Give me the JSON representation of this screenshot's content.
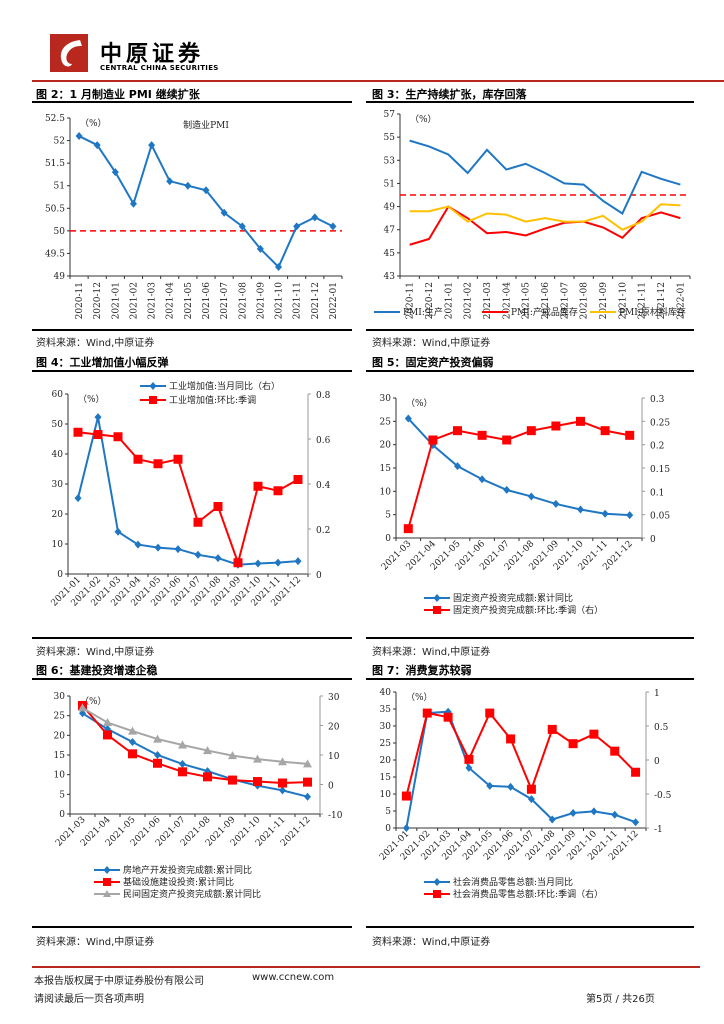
{
  "header": {
    "logo_cn": "中原证券",
    "logo_en": "CENTRAL CHINA SECURITIES"
  },
  "source_label": "资料来源：Wind,中原证券",
  "footer": {
    "copyright": "本报告版权属于中原证券股份有限公司",
    "website": "www.ccnew.com",
    "disclaimer": "请阅读最后一页各项声明",
    "page": "第5页 / 共26页"
  },
  "colors": {
    "brand_red": "#b8281f",
    "blue": "#1f77c4",
    "red": "#ff0000",
    "orange": "#ffc000",
    "gray": "#a6a6a6"
  },
  "chart_data": [
    {
      "id": "fig2",
      "figure_title": "图 2：1 月制造业 PMI 继续扩张",
      "type": "line",
      "title": "制造业PMI",
      "unit_label": "（%）",
      "categories": [
        "2020-11",
        "2020-12",
        "2021-01",
        "2021-02",
        "2021-03",
        "2021-04",
        "2021-05",
        "2021-06",
        "2021-07",
        "2021-08",
        "2021-09",
        "2021-10",
        "2021-11",
        "2021-12",
        "2022-01"
      ],
      "series": [
        {
          "name": "制造业PMI",
          "values": [
            52.1,
            51.9,
            51.3,
            50.6,
            51.9,
            51.1,
            51.0,
            50.9,
            50.4,
            50.1,
            49.6,
            49.2,
            50.1,
            50.3,
            50.1
          ],
          "color": "#1f77c4",
          "marker": "diamond"
        }
      ],
      "reference_line": 50,
      "ylim": [
        49,
        52.5
      ],
      "yticks": [
        49,
        49.5,
        50,
        50.5,
        51,
        51.5,
        52,
        52.5
      ],
      "xlabel": "",
      "ylabel": ""
    },
    {
      "id": "fig3",
      "figure_title": "图 3：生产持续扩张，库存回落",
      "type": "line",
      "unit_label": "（%）",
      "categories": [
        "2020-11",
        "2020-12",
        "2021-01",
        "2021-02",
        "2021-03",
        "2021-04",
        "2021-05",
        "2021-06",
        "2021-07",
        "2021-08",
        "2021-09",
        "2021-10",
        "2021-11",
        "2021-12",
        "2022-01"
      ],
      "series": [
        {
          "name": "PMI:生产",
          "values": [
            54.7,
            54.2,
            53.5,
            51.9,
            53.9,
            52.2,
            52.7,
            51.9,
            51.0,
            50.9,
            49.5,
            48.4,
            52.0,
            51.4,
            50.9
          ],
          "color": "#1f77c4"
        },
        {
          "name": "PMI:产成品库存",
          "values": [
            45.7,
            46.2,
            49.0,
            48.0,
            46.7,
            46.8,
            46.5,
            47.1,
            47.6,
            47.7,
            47.2,
            46.3,
            48.0,
            48.5,
            48.0
          ],
          "color": "#ff0000"
        },
        {
          "name": "PMI:原材料库存",
          "values": [
            48.6,
            48.6,
            49.0,
            47.7,
            48.4,
            48.3,
            47.7,
            48.0,
            47.7,
            47.7,
            48.2,
            47.0,
            47.7,
            49.2,
            49.1
          ],
          "color": "#ffc000"
        }
      ],
      "reference_line": 50,
      "ylim": [
        43,
        57
      ],
      "yticks": [
        43,
        45,
        47,
        49,
        51,
        53,
        55,
        57
      ],
      "legend": "bottom"
    },
    {
      "id": "fig4",
      "figure_title": "图 4：工业增加值小幅反弹",
      "type": "line",
      "unit_label": "（%）",
      "categories": [
        "2021-01",
        "2021-02",
        "2021-03",
        "2021-04",
        "2021-05",
        "2021-06",
        "2021-07",
        "2021-08",
        "2021-09",
        "2021-10",
        "2021-11",
        "2021-12"
      ],
      "series": [
        {
          "name": "工业增加值:当月同比（右）",
          "axis": "left",
          "values": [
            25.3,
            52.3,
            14.1,
            9.8,
            8.8,
            8.3,
            6.4,
            5.3,
            3.1,
            3.5,
            3.8,
            4.3
          ],
          "color": "#1f77c4",
          "marker": "diamond"
        },
        {
          "name": "工业增加值:环比:季调",
          "axis": "right",
          "values": [
            0.63,
            0.62,
            0.61,
            0.51,
            0.49,
            0.51,
            0.23,
            0.3,
            0.05,
            0.39,
            0.37,
            0.42
          ],
          "color": "#ff0000",
          "marker": "square"
        }
      ],
      "ylim": [
        0,
        60
      ],
      "yticks": [
        0,
        10,
        20,
        30,
        40,
        50,
        60
      ],
      "y2lim": [
        0,
        0.8
      ],
      "y2ticks": [
        0,
        0.2,
        0.4,
        0.6,
        0.8
      ],
      "legend": "top"
    },
    {
      "id": "fig5",
      "figure_title": "图 5：固定资产投资偏弱",
      "type": "line",
      "unit_label": "（%）",
      "categories": [
        "2021-03",
        "2021-04",
        "2021-05",
        "2021-06",
        "2021-07",
        "2021-08",
        "2021-09",
        "2021-10",
        "2021-11",
        "2021-12"
      ],
      "series": [
        {
          "name": "固定资产投资完成额:累计同比",
          "axis": "left",
          "values": [
            25.6,
            19.9,
            15.4,
            12.6,
            10.3,
            8.9,
            7.3,
            6.1,
            5.2,
            4.9
          ],
          "color": "#1f77c4",
          "marker": "diamond"
        },
        {
          "name": "固定资产投资完成额:环比:季调（右）",
          "axis": "right",
          "values": [
            0.02,
            0.21,
            0.23,
            0.22,
            0.21,
            0.23,
            0.24,
            0.25,
            0.23,
            0.22
          ],
          "color": "#ff0000",
          "marker": "square"
        }
      ],
      "ylim": [
        0,
        30
      ],
      "yticks": [
        0,
        5,
        10,
        15,
        20,
        25,
        30
      ],
      "y2lim": [
        0,
        0.3
      ],
      "y2ticks": [
        0,
        0.05,
        0.1,
        0.15,
        0.2,
        0.25,
        0.3
      ],
      "legend": "bottom"
    },
    {
      "id": "fig6",
      "figure_title": "图 6：基建投资增速企稳",
      "type": "line",
      "unit_label": "（%）",
      "categories": [
        "2021-03",
        "2021-04",
        "2021-05",
        "2021-06",
        "2021-07",
        "2021-08",
        "2021-09",
        "2021-10",
        "2021-11",
        "2021-12"
      ],
      "series": [
        {
          "name": "房地产开发投资完成额:累计同比",
          "axis": "left",
          "values": [
            25.6,
            21.6,
            18.3,
            15.0,
            12.7,
            10.9,
            8.8,
            7.2,
            6.0,
            4.4
          ],
          "color": "#1f77c4",
          "marker": "diamond"
        },
        {
          "name": "基础设施建设投资:累计同比",
          "axis": "right",
          "values": [
            26.8,
            16.8,
            10.4,
            7.2,
            4.3,
            2.6,
            1.5,
            1.0,
            0.5,
            0.8
          ],
          "color": "#ff0000",
          "marker": "square"
        },
        {
          "name": "民间固定资产投资完成额:累计同比",
          "axis": "right",
          "values": [
            26.0,
            21.0,
            18.1,
            15.4,
            13.4,
            11.5,
            9.8,
            8.6,
            7.7,
            7.0
          ],
          "color": "#a6a6a6",
          "marker": "triangle"
        }
      ],
      "ylim": [
        0,
        30
      ],
      "yticks": [
        0,
        5,
        10,
        15,
        20,
        25,
        30
      ],
      "y2lim": [
        -10,
        30
      ],
      "y2ticks": [
        -10,
        0,
        10,
        20,
        30
      ],
      "legend": "bottom"
    },
    {
      "id": "fig7",
      "figure_title": "图 7：消费复苏较弱",
      "type": "line",
      "unit_label": "（%）",
      "categories": [
        "2021-01",
        "2021-02",
        "2021-03",
        "2021-04",
        "2021-05",
        "2021-06",
        "2021-07",
        "2021-08",
        "2021-09",
        "2021-10",
        "2021-11",
        "2021-12"
      ],
      "series": [
        {
          "name": "社会消费品零售总额:当月同比",
          "axis": "left",
          "values": [
            0,
            33.8,
            34.2,
            17.7,
            12.4,
            12.1,
            8.5,
            2.5,
            4.4,
            4.9,
            3.9,
            1.7
          ],
          "color": "#1f77c4",
          "marker": "diamond"
        },
        {
          "name": "社会消费品零售总额:环比:季调（右）",
          "axis": "right",
          "values": [
            -0.53,
            0.69,
            0.63,
            0.01,
            0.69,
            0.31,
            -0.43,
            0.45,
            0.24,
            0.38,
            0.13,
            -0.18
          ],
          "color": "#ff0000",
          "marker": "square"
        }
      ],
      "ylim": [
        0,
        40
      ],
      "yticks": [
        0,
        5,
        10,
        15,
        20,
        25,
        30,
        35,
        40
      ],
      "y2lim": [
        -1,
        1
      ],
      "y2ticks": [
        -1,
        -0.5,
        0,
        0.5,
        1
      ],
      "legend": "bottom"
    }
  ]
}
